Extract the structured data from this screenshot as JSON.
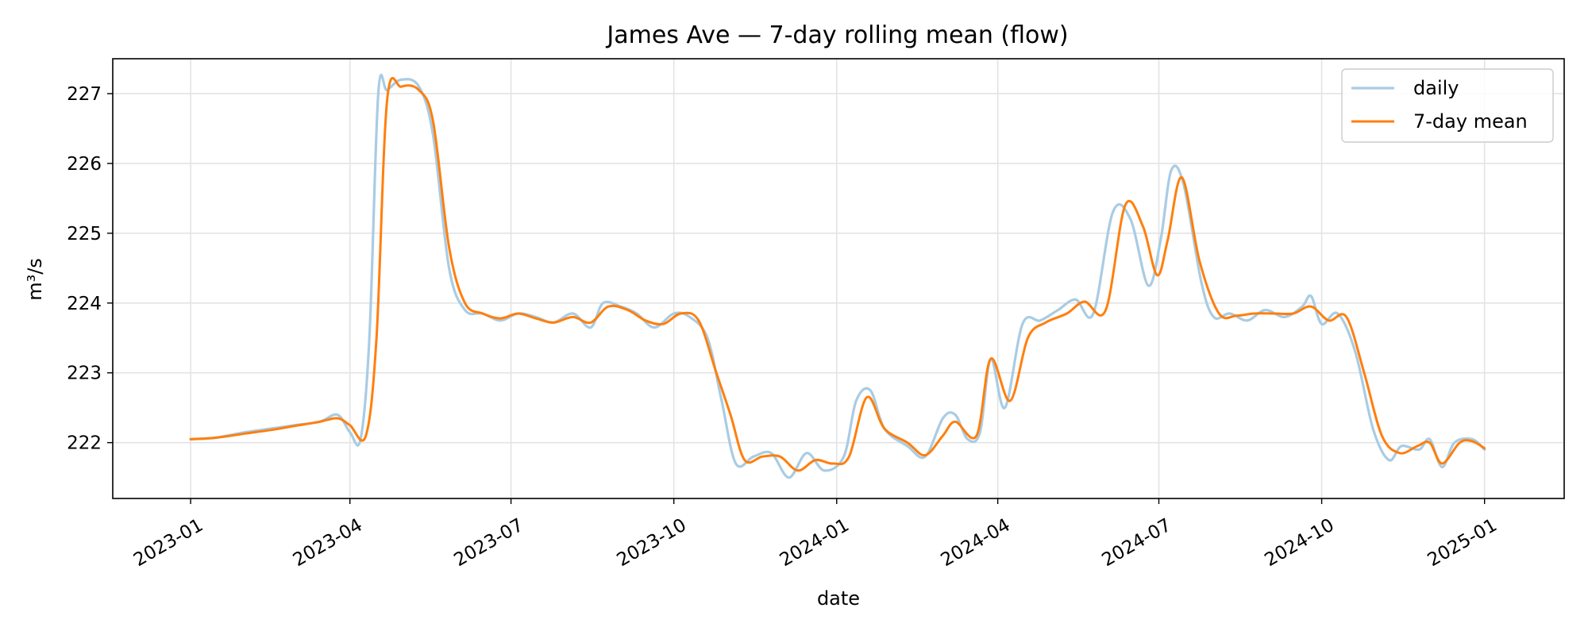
{
  "chart_data": {
    "type": "line",
    "title": "James Ave — 7-day rolling mean (flow)",
    "xlabel": "date",
    "ylabel": "m³/s",
    "x_ticks": [
      "2023-01",
      "2023-04",
      "2023-07",
      "2023-10",
      "2024-01",
      "2024-04",
      "2024-07",
      "2024-10",
      "2025-01"
    ],
    "y_ticks": [
      222,
      223,
      224,
      225,
      226,
      227
    ],
    "xlim": [
      "2022-11-18",
      "2025-02-15"
    ],
    "ylim": [
      221.2,
      227.5
    ],
    "grid": true,
    "legend_position": "top-right",
    "series": [
      {
        "name": "daily",
        "color": "#a9cce3",
        "points": [
          [
            "2023-01-01",
            222.05
          ],
          [
            "2023-01-15",
            222.07
          ],
          [
            "2023-02-01",
            222.15
          ],
          [
            "2023-02-15",
            222.2
          ],
          [
            "2023-03-01",
            222.25
          ],
          [
            "2023-03-15",
            222.3
          ],
          [
            "2023-03-25",
            222.4
          ],
          [
            "2023-04-01",
            222.15
          ],
          [
            "2023-04-07",
            222.05
          ],
          [
            "2023-04-12",
            223.5
          ],
          [
            "2023-04-17",
            227.0
          ],
          [
            "2023-04-22",
            227.05
          ],
          [
            "2023-04-30",
            227.2
          ],
          [
            "2023-05-10",
            227.1
          ],
          [
            "2023-05-18",
            226.4
          ],
          [
            "2023-05-27",
            224.5
          ],
          [
            "2023-06-05",
            223.9
          ],
          [
            "2023-06-15",
            223.85
          ],
          [
            "2023-06-25",
            223.75
          ],
          [
            "2023-07-05",
            223.85
          ],
          [
            "2023-07-15",
            223.8
          ],
          [
            "2023-07-25",
            223.72
          ],
          [
            "2023-08-05",
            223.85
          ],
          [
            "2023-08-15",
            223.65
          ],
          [
            "2023-08-22",
            224.0
          ],
          [
            "2023-09-01",
            223.95
          ],
          [
            "2023-09-10",
            223.85
          ],
          [
            "2023-09-20",
            223.65
          ],
          [
            "2023-10-01",
            223.85
          ],
          [
            "2023-10-10",
            223.8
          ],
          [
            "2023-10-20",
            223.5
          ],
          [
            "2023-10-28",
            222.6
          ],
          [
            "2023-11-05",
            221.7
          ],
          [
            "2023-11-15",
            221.8
          ],
          [
            "2023-11-25",
            221.85
          ],
          [
            "2023-12-05",
            221.5
          ],
          [
            "2023-12-15",
            221.85
          ],
          [
            "2023-12-25",
            221.6
          ],
          [
            "2024-01-05",
            221.8
          ],
          [
            "2024-01-12",
            222.6
          ],
          [
            "2024-01-20",
            222.75
          ],
          [
            "2024-01-28",
            222.2
          ],
          [
            "2024-02-10",
            221.95
          ],
          [
            "2024-02-20",
            221.8
          ],
          [
            "2024-03-01",
            222.35
          ],
          [
            "2024-03-08",
            222.4
          ],
          [
            "2024-03-15",
            222.05
          ],
          [
            "2024-03-22",
            222.15
          ],
          [
            "2024-03-28",
            223.2
          ],
          [
            "2024-04-05",
            222.5
          ],
          [
            "2024-04-15",
            223.7
          ],
          [
            "2024-04-25",
            223.75
          ],
          [
            "2024-05-05",
            223.9
          ],
          [
            "2024-05-15",
            224.05
          ],
          [
            "2024-05-25",
            223.85
          ],
          [
            "2024-06-05",
            225.3
          ],
          [
            "2024-06-15",
            225.2
          ],
          [
            "2024-06-25",
            224.25
          ],
          [
            "2024-07-02",
            224.9
          ],
          [
            "2024-07-08",
            225.9
          ],
          [
            "2024-07-15",
            225.7
          ],
          [
            "2024-07-25",
            224.3
          ],
          [
            "2024-08-01",
            223.8
          ],
          [
            "2024-08-10",
            223.85
          ],
          [
            "2024-08-20",
            223.75
          ],
          [
            "2024-08-30",
            223.9
          ],
          [
            "2024-09-10",
            223.8
          ],
          [
            "2024-09-20",
            223.95
          ],
          [
            "2024-09-25",
            224.1
          ],
          [
            "2024-10-01",
            223.7
          ],
          [
            "2024-10-10",
            223.85
          ],
          [
            "2024-10-20",
            223.3
          ],
          [
            "2024-10-30",
            222.2
          ],
          [
            "2024-11-08",
            221.75
          ],
          [
            "2024-11-15",
            221.95
          ],
          [
            "2024-11-25",
            221.9
          ],
          [
            "2024-12-01",
            222.05
          ],
          [
            "2024-12-08",
            221.65
          ],
          [
            "2024-12-15",
            222.0
          ],
          [
            "2024-12-25",
            222.05
          ],
          [
            "2025-01-01",
            221.9
          ]
        ]
      },
      {
        "name": "7-day mean",
        "color": "#ff7f0e",
        "points": [
          [
            "2023-01-01",
            222.05
          ],
          [
            "2023-01-15",
            222.07
          ],
          [
            "2023-02-01",
            222.13
          ],
          [
            "2023-02-15",
            222.18
          ],
          [
            "2023-03-01",
            222.24
          ],
          [
            "2023-03-15",
            222.3
          ],
          [
            "2023-03-25",
            222.35
          ],
          [
            "2023-04-01",
            222.25
          ],
          [
            "2023-04-10",
            222.1
          ],
          [
            "2023-04-16",
            223.5
          ],
          [
            "2023-04-22",
            226.9
          ],
          [
            "2023-04-30",
            227.1
          ],
          [
            "2023-05-10",
            227.05
          ],
          [
            "2023-05-18",
            226.6
          ],
          [
            "2023-05-27",
            224.8
          ],
          [
            "2023-06-05",
            224.0
          ],
          [
            "2023-06-15",
            223.85
          ],
          [
            "2023-06-25",
            223.78
          ],
          [
            "2023-07-05",
            223.85
          ],
          [
            "2023-07-15",
            223.78
          ],
          [
            "2023-07-25",
            223.72
          ],
          [
            "2023-08-05",
            223.8
          ],
          [
            "2023-08-15",
            223.72
          ],
          [
            "2023-08-25",
            223.95
          ],
          [
            "2023-09-05",
            223.9
          ],
          [
            "2023-09-15",
            223.75
          ],
          [
            "2023-09-25",
            223.7
          ],
          [
            "2023-10-05",
            223.85
          ],
          [
            "2023-10-15",
            223.75
          ],
          [
            "2023-10-25",
            223.0
          ],
          [
            "2023-11-02",
            222.4
          ],
          [
            "2023-11-10",
            221.75
          ],
          [
            "2023-11-20",
            221.8
          ],
          [
            "2023-11-30",
            221.8
          ],
          [
            "2023-12-10",
            221.6
          ],
          [
            "2023-12-20",
            221.75
          ],
          [
            "2023-12-30",
            221.7
          ],
          [
            "2024-01-08",
            221.8
          ],
          [
            "2024-01-18",
            222.65
          ],
          [
            "2024-01-28",
            222.2
          ],
          [
            "2024-02-10",
            222.0
          ],
          [
            "2024-02-20",
            221.82
          ],
          [
            "2024-03-01",
            222.1
          ],
          [
            "2024-03-08",
            222.3
          ],
          [
            "2024-03-20",
            222.1
          ],
          [
            "2024-03-28",
            223.2
          ],
          [
            "2024-04-08",
            222.6
          ],
          [
            "2024-04-18",
            223.5
          ],
          [
            "2024-04-28",
            223.72
          ],
          [
            "2024-05-10",
            223.85
          ],
          [
            "2024-05-20",
            224.02
          ],
          [
            "2024-06-01",
            223.9
          ],
          [
            "2024-06-12",
            225.4
          ],
          [
            "2024-06-22",
            225.1
          ],
          [
            "2024-06-30",
            224.4
          ],
          [
            "2024-07-06",
            224.9
          ],
          [
            "2024-07-14",
            225.8
          ],
          [
            "2024-07-24",
            224.6
          ],
          [
            "2024-08-04",
            223.85
          ],
          [
            "2024-08-14",
            223.82
          ],
          [
            "2024-08-24",
            223.85
          ],
          [
            "2024-09-05",
            223.85
          ],
          [
            "2024-09-15",
            223.85
          ],
          [
            "2024-09-25",
            223.95
          ],
          [
            "2024-10-05",
            223.75
          ],
          [
            "2024-10-15",
            223.8
          ],
          [
            "2024-10-25",
            223.0
          ],
          [
            "2024-11-04",
            222.1
          ],
          [
            "2024-11-14",
            221.85
          ],
          [
            "2024-11-24",
            221.95
          ],
          [
            "2024-12-01",
            222.0
          ],
          [
            "2024-12-08",
            221.7
          ],
          [
            "2024-12-18",
            222.0
          ],
          [
            "2024-12-25",
            222.02
          ],
          [
            "2025-01-01",
            221.92
          ]
        ]
      }
    ]
  }
}
